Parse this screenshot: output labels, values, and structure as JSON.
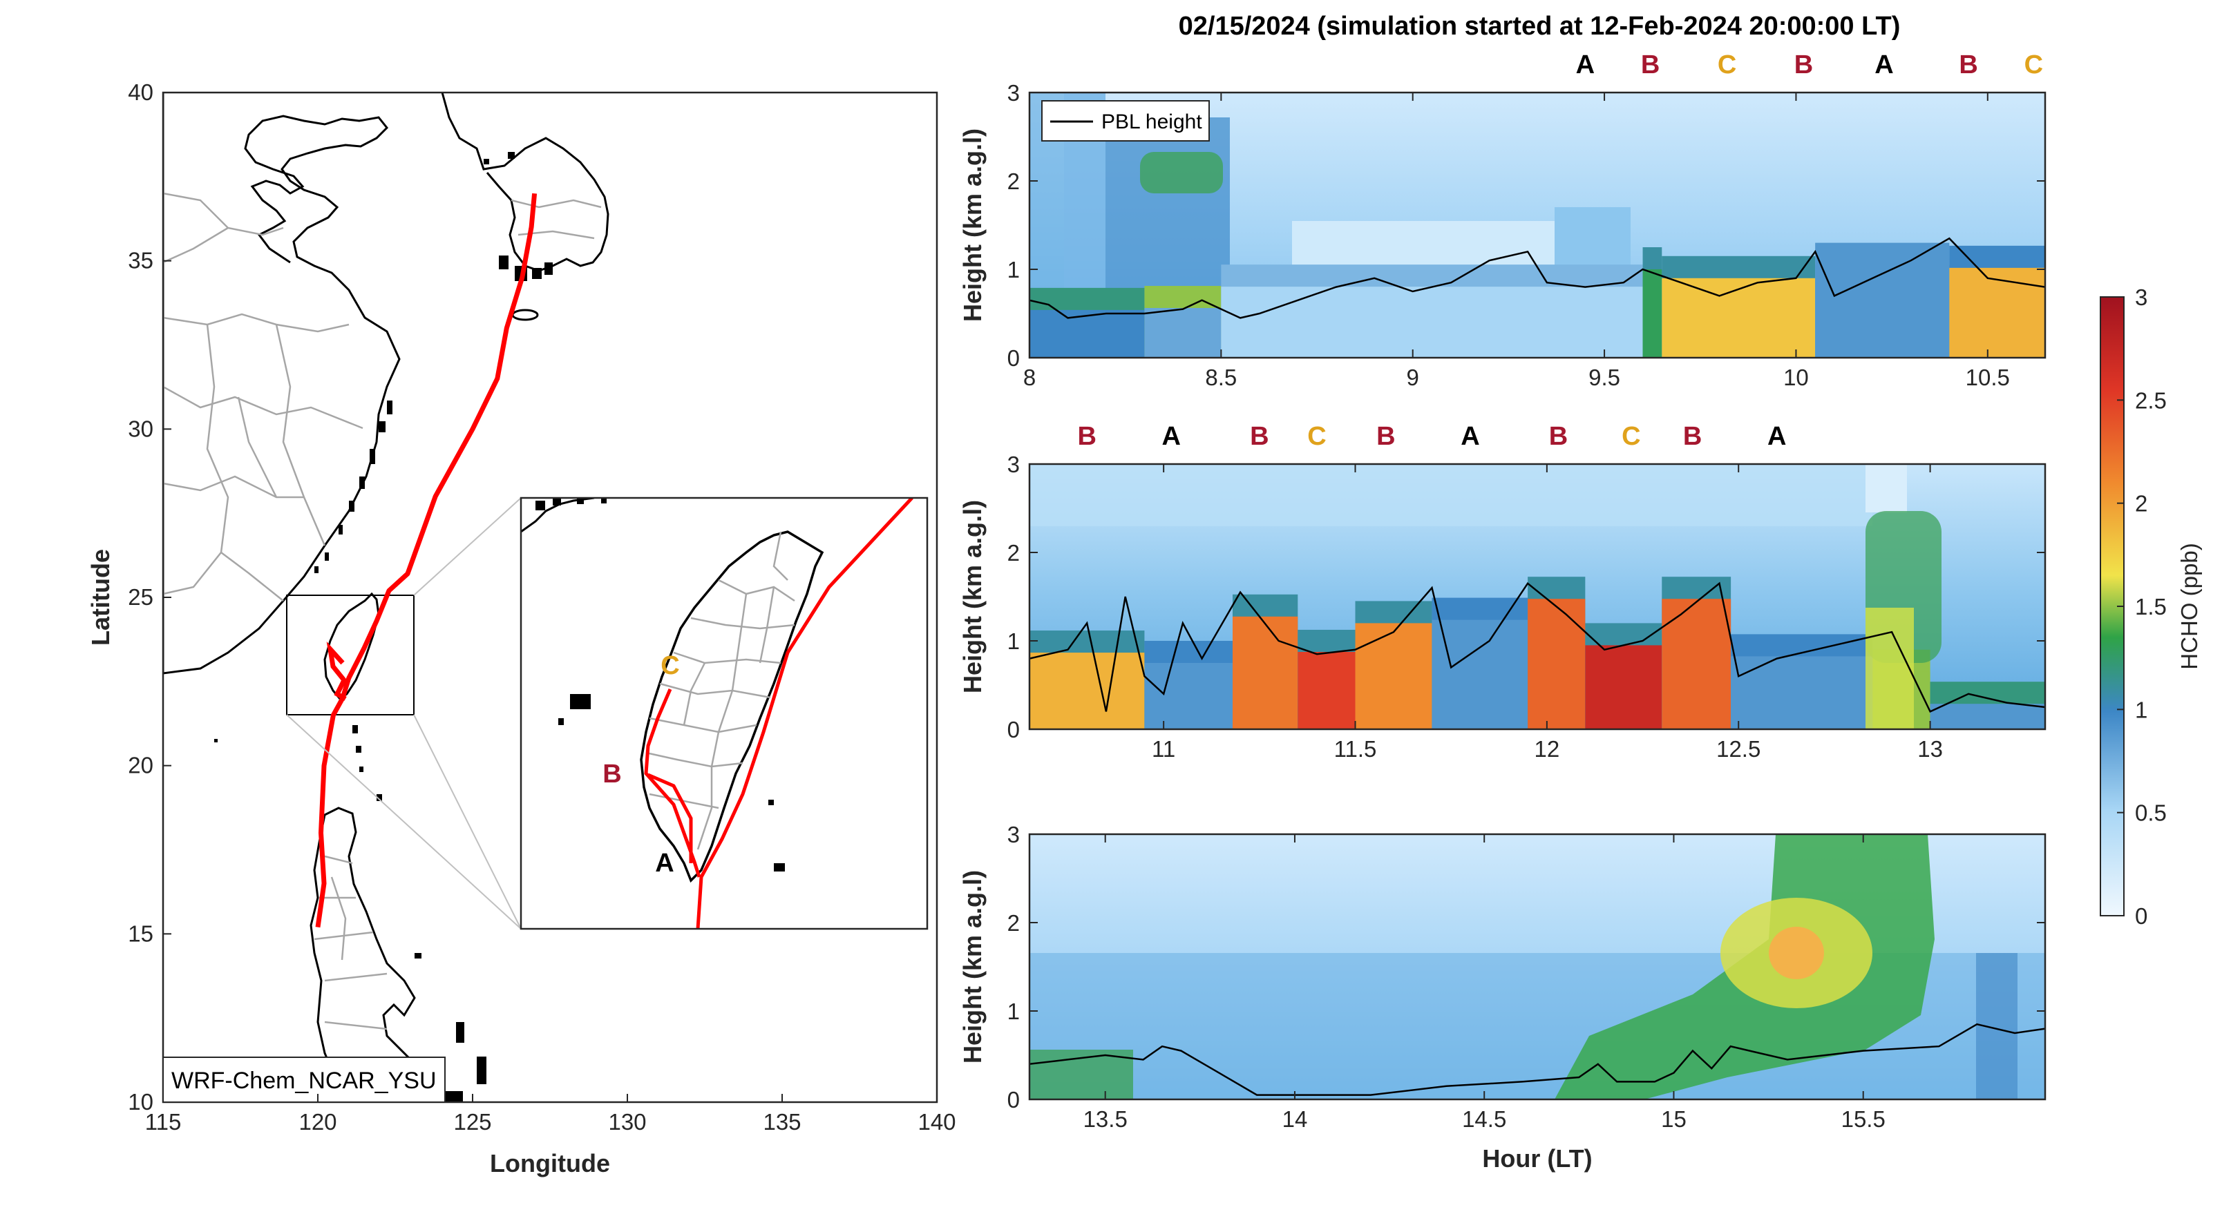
{
  "title": "02/15/2024 (simulation started at 12-Feb-2024 20:00:00 LT)",
  "colors": {
    "A": "#000000",
    "B": "#a5172f",
    "C": "#e0a21c",
    "route": "#ff0000",
    "pbl": "#000000"
  },
  "chart_data": [
    {
      "type": "map",
      "xlabel": "Longitude",
      "ylabel": "Latitude",
      "xlim": [
        115,
        140
      ],
      "ylim": [
        10,
        40
      ],
      "xticks": [
        115,
        120,
        125,
        130,
        135,
        140
      ],
      "yticks": [
        10,
        15,
        20,
        25,
        30,
        35,
        40
      ],
      "model_label": "WRF-Chem_NCAR_YSU",
      "flight_track": [
        [
          127.0,
          37.0
        ],
        [
          126.9,
          36.0
        ],
        [
          126.6,
          34.5
        ],
        [
          126.1,
          33.0
        ],
        [
          125.8,
          31.5
        ],
        [
          125.0,
          30.0
        ],
        [
          123.8,
          28.0
        ],
        [
          122.9,
          25.7
        ],
        [
          122.3,
          25.2
        ],
        [
          121.9,
          24.3
        ],
        [
          121.5,
          23.5
        ],
        [
          121.0,
          22.6
        ],
        [
          120.8,
          22.0
        ],
        [
          120.5,
          21.5
        ],
        [
          120.2,
          20.0
        ],
        [
          120.1,
          18.0
        ],
        [
          120.2,
          16.5
        ],
        [
          120.0,
          15.2
        ]
      ],
      "inset": {
        "lon_range": [
          119.2,
          122.8
        ],
        "lat_range": [
          21.6,
          25.4
        ],
        "labels": [
          {
            "text": "A",
            "lon": 120.9,
            "lat": 22.1
          },
          {
            "text": "B",
            "lon": 120.05,
            "lat": 23.2
          },
          {
            "text": "C",
            "lon": 120.5,
            "lat": 24.1
          }
        ]
      }
    },
    {
      "type": "heatmap",
      "panel": 1,
      "xlim": [
        8,
        10.65
      ],
      "ylim": [
        0,
        3
      ],
      "xticks": [
        8,
        8.5,
        9,
        9.5,
        10,
        10.5
      ],
      "yticks": [
        0,
        1,
        2,
        3
      ],
      "ylabel": "Height (km a.g.l)",
      "legend": "PBL height",
      "markers": [
        {
          "text": "A",
          "x": 9.45
        },
        {
          "text": "B",
          "x": 9.62
        },
        {
          "text": "C",
          "x": 9.82
        },
        {
          "text": "B",
          "x": 10.02
        },
        {
          "text": "A",
          "x": 10.23
        },
        {
          "text": "B",
          "x": 10.45
        },
        {
          "text": "C",
          "x": 10.62
        }
      ],
      "pbl_height": [
        [
          8.0,
          0.65
        ],
        [
          8.05,
          0.6
        ],
        [
          8.1,
          0.45
        ],
        [
          8.2,
          0.5
        ],
        [
          8.3,
          0.5
        ],
        [
          8.4,
          0.55
        ],
        [
          8.45,
          0.65
        ],
        [
          8.5,
          0.55
        ],
        [
          8.55,
          0.45
        ],
        [
          8.6,
          0.5
        ],
        [
          8.7,
          0.65
        ],
        [
          8.8,
          0.8
        ],
        [
          8.9,
          0.9
        ],
        [
          9.0,
          0.75
        ],
        [
          9.1,
          0.85
        ],
        [
          9.2,
          1.1
        ],
        [
          9.3,
          1.2
        ],
        [
          9.35,
          0.85
        ],
        [
          9.45,
          0.8
        ],
        [
          9.55,
          0.85
        ],
        [
          9.6,
          1.0
        ],
        [
          9.7,
          0.85
        ],
        [
          9.8,
          0.7
        ],
        [
          9.9,
          0.85
        ],
        [
          10.0,
          0.9
        ],
        [
          10.05,
          1.2
        ],
        [
          10.1,
          0.7
        ],
        [
          10.2,
          0.9
        ],
        [
          10.3,
          1.1
        ],
        [
          10.4,
          1.35
        ],
        [
          10.5,
          0.9
        ],
        [
          10.65,
          0.8
        ]
      ],
      "hcho_bands": [
        {
          "x0": 8.0,
          "x1": 8.3,
          "surface": 1.0,
          "upper": 0.9
        },
        {
          "x0": 8.3,
          "x1": 8.5,
          "surface": 0.8,
          "upper": 1.2
        },
        {
          "x0": 8.5,
          "x1": 9.6,
          "surface": 0.5,
          "upper": 0.4
        },
        {
          "x0": 9.6,
          "x1": 9.65,
          "surface": 1.3,
          "upper": 0.8
        },
        {
          "x0": 9.65,
          "x1": 10.05,
          "surface": 1.8,
          "upper": 0.8
        },
        {
          "x0": 10.05,
          "x1": 10.4,
          "surface": 0.9,
          "upper": 0.6
        },
        {
          "x0": 10.4,
          "x1": 10.65,
          "surface": 1.9,
          "upper": 0.7
        }
      ]
    },
    {
      "type": "heatmap",
      "panel": 2,
      "xlim": [
        10.65,
        13.3
      ],
      "ylim": [
        0,
        3
      ],
      "xticks": [
        11,
        11.5,
        12,
        12.5,
        13
      ],
      "yticks": [
        0,
        1,
        2,
        3
      ],
      "ylabel": "Height (km a.g.l)",
      "markers": [
        {
          "text": "B",
          "x": 10.8
        },
        {
          "text": "A",
          "x": 11.02
        },
        {
          "text": "B",
          "x": 11.25
        },
        {
          "text": "C",
          "x": 11.4
        },
        {
          "text": "B",
          "x": 11.58
        },
        {
          "text": "A",
          "x": 11.8
        },
        {
          "text": "B",
          "x": 12.03
        },
        {
          "text": "C",
          "x": 12.22
        },
        {
          "text": "B",
          "x": 12.38
        },
        {
          "text": "A",
          "x": 12.6
        }
      ],
      "pbl_height": [
        [
          10.65,
          0.8
        ],
        [
          10.75,
          0.9
        ],
        [
          10.8,
          1.2
        ],
        [
          10.85,
          0.2
        ],
        [
          10.9,
          1.5
        ],
        [
          10.95,
          0.6
        ],
        [
          11.0,
          0.4
        ],
        [
          11.05,
          1.2
        ],
        [
          11.1,
          0.8
        ],
        [
          11.2,
          1.55
        ],
        [
          11.3,
          1.0
        ],
        [
          11.4,
          0.85
        ],
        [
          11.5,
          0.9
        ],
        [
          11.6,
          1.1
        ],
        [
          11.7,
          1.6
        ],
        [
          11.75,
          0.7
        ],
        [
          11.85,
          1.0
        ],
        [
          11.95,
          1.65
        ],
        [
          12.05,
          1.3
        ],
        [
          12.15,
          0.9
        ],
        [
          12.25,
          1.0
        ],
        [
          12.35,
          1.3
        ],
        [
          12.45,
          1.65
        ],
        [
          12.5,
          0.6
        ],
        [
          12.6,
          0.8
        ],
        [
          12.7,
          0.9
        ],
        [
          12.8,
          1.0
        ],
        [
          12.9,
          1.1
        ],
        [
          13.0,
          0.2
        ],
        [
          13.1,
          0.4
        ],
        [
          13.2,
          0.3
        ],
        [
          13.3,
          0.25
        ]
      ],
      "hcho_bands": [
        {
          "x0": 10.65,
          "x1": 10.95,
          "surface": 1.9,
          "upper": 0.8
        },
        {
          "x0": 10.95,
          "x1": 11.18,
          "surface": 0.9,
          "upper": 0.7
        },
        {
          "x0": 11.18,
          "x1": 11.35,
          "surface": 2.2,
          "upper": 0.8
        },
        {
          "x0": 11.35,
          "x1": 11.5,
          "surface": 2.5,
          "upper": 0.8
        },
        {
          "x0": 11.5,
          "x1": 11.7,
          "surface": 2.1,
          "upper": 0.8
        },
        {
          "x0": 11.7,
          "x1": 11.95,
          "surface": 0.9,
          "upper": 0.7
        },
        {
          "x0": 11.95,
          "x1": 12.1,
          "surface": 2.3,
          "upper": 0.8
        },
        {
          "x0": 12.1,
          "x1": 12.3,
          "surface": 2.7,
          "upper": 0.8
        },
        {
          "x0": 12.3,
          "x1": 12.48,
          "surface": 2.3,
          "upper": 0.8
        },
        {
          "x0": 12.48,
          "x1": 12.85,
          "surface": 0.9,
          "upper": 0.7
        },
        {
          "x0": 12.85,
          "x1": 13.0,
          "surface": 1.5,
          "upper": 1.2
        },
        {
          "x0": 13.0,
          "x1": 13.3,
          "surface": 0.9,
          "upper": 0.9
        }
      ]
    },
    {
      "type": "heatmap",
      "panel": 3,
      "xlim": [
        13.3,
        15.98
      ],
      "ylim": [
        0,
        3
      ],
      "xticks": [
        13.5,
        14,
        14.5,
        15,
        15.5
      ],
      "yticks": [
        0,
        1,
        2,
        3
      ],
      "xlabel": "Hour (LT)",
      "ylabel": "Height (km a.g.l)",
      "pbl_height": [
        [
          13.3,
          0.4
        ],
        [
          13.4,
          0.45
        ],
        [
          13.5,
          0.5
        ],
        [
          13.6,
          0.45
        ],
        [
          13.65,
          0.6
        ],
        [
          13.7,
          0.55
        ],
        [
          13.8,
          0.3
        ],
        [
          13.9,
          0.05
        ],
        [
          14.0,
          0.05
        ],
        [
          14.2,
          0.05
        ],
        [
          14.4,
          0.15
        ],
        [
          14.6,
          0.2
        ],
        [
          14.75,
          0.25
        ],
        [
          14.8,
          0.4
        ],
        [
          14.85,
          0.2
        ],
        [
          14.95,
          0.2
        ],
        [
          15.0,
          0.3
        ],
        [
          15.05,
          0.55
        ],
        [
          15.1,
          0.35
        ],
        [
          15.15,
          0.6
        ],
        [
          15.3,
          0.45
        ],
        [
          15.5,
          0.55
        ],
        [
          15.7,
          0.6
        ],
        [
          15.8,
          0.85
        ],
        [
          15.9,
          0.75
        ],
        [
          15.98,
          0.8
        ]
      ]
    },
    {
      "type": "colorbar",
      "label": "HCHO (ppb)",
      "range": [
        0,
        3
      ],
      "ticks": [
        0,
        0.5,
        1,
        1.5,
        2,
        2.5,
        3
      ]
    }
  ]
}
